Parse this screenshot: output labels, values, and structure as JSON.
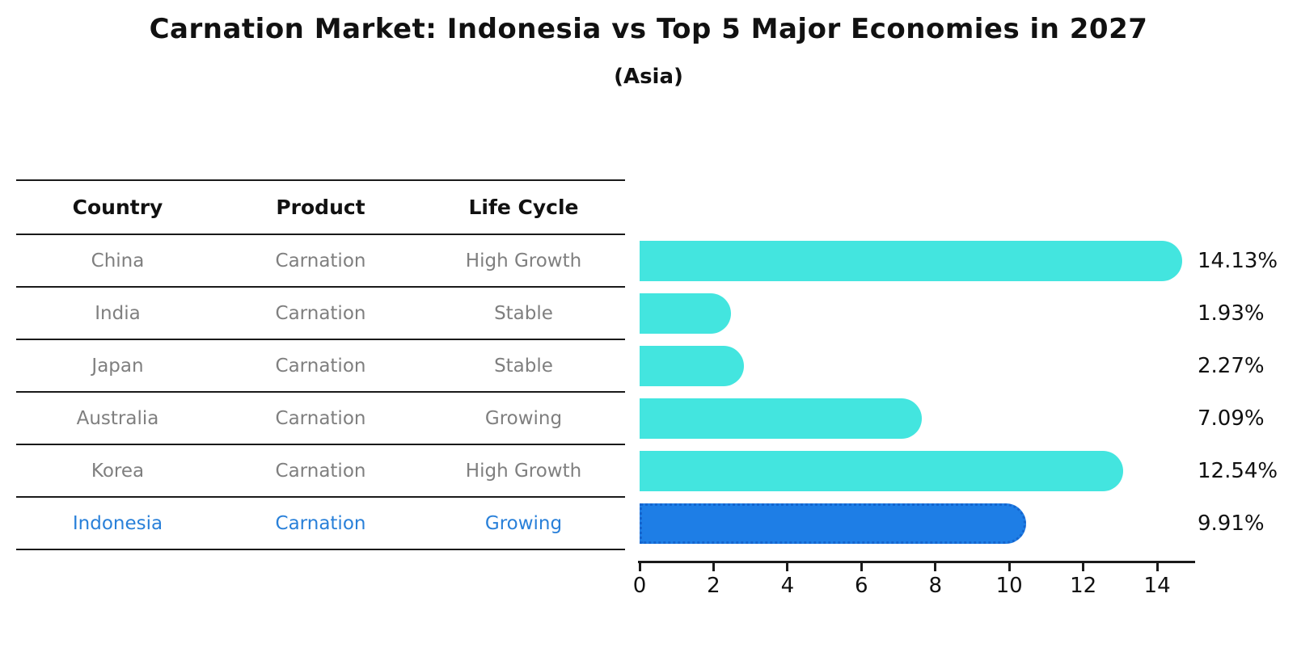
{
  "title": "Carnation Market: Indonesia vs Top 5 Major Economies in 2027",
  "subtitle": "(Asia)",
  "table": {
    "headers": [
      "Country",
      "Product",
      "Life Cycle"
    ],
    "rows": [
      {
        "country": "China",
        "product": "Carnation",
        "life_cycle": "High Growth",
        "highlight": false
      },
      {
        "country": "India",
        "product": "Carnation",
        "life_cycle": "Stable",
        "highlight": false
      },
      {
        "country": "Japan",
        "product": "Carnation",
        "life_cycle": "Stable",
        "highlight": false
      },
      {
        "country": "Australia",
        "product": "Carnation",
        "life_cycle": "Growing",
        "highlight": false
      },
      {
        "country": "Korea",
        "product": "Carnation",
        "life_cycle": "High Growth",
        "highlight": false
      },
      {
        "country": "Indonesia",
        "product": "Carnation",
        "life_cycle": "Growing",
        "highlight": true
      }
    ]
  },
  "chart_data": {
    "type": "bar",
    "orientation": "horizontal",
    "title": "Carnation Market: Indonesia vs Top 5 Major Economies in 2027",
    "subtitle": "(Asia)",
    "categories": [
      "China",
      "India",
      "Japan",
      "Australia",
      "Korea",
      "Indonesia"
    ],
    "values": [
      14.13,
      1.93,
      2.27,
      7.09,
      12.54,
      9.91
    ],
    "value_labels": [
      "14.13%",
      "1.93%",
      "2.27%",
      "7.09%",
      "12.54%",
      "9.91%"
    ],
    "x_ticks": [
      0,
      2,
      4,
      6,
      8,
      10,
      12,
      14
    ],
    "xlim": [
      0,
      15
    ],
    "grid": false,
    "legend": "none",
    "highlight_index": 5,
    "bar_color": "#43E5DF",
    "highlight_bar_color": "#1E7EE6",
    "highlight_border_color": "#1565CE"
  },
  "colors": {
    "background": "#FFFFFF",
    "text": "#111111",
    "table_text": "#7F7F7F",
    "highlight_text": "#2980D9",
    "axis": "#1A1A1A"
  }
}
